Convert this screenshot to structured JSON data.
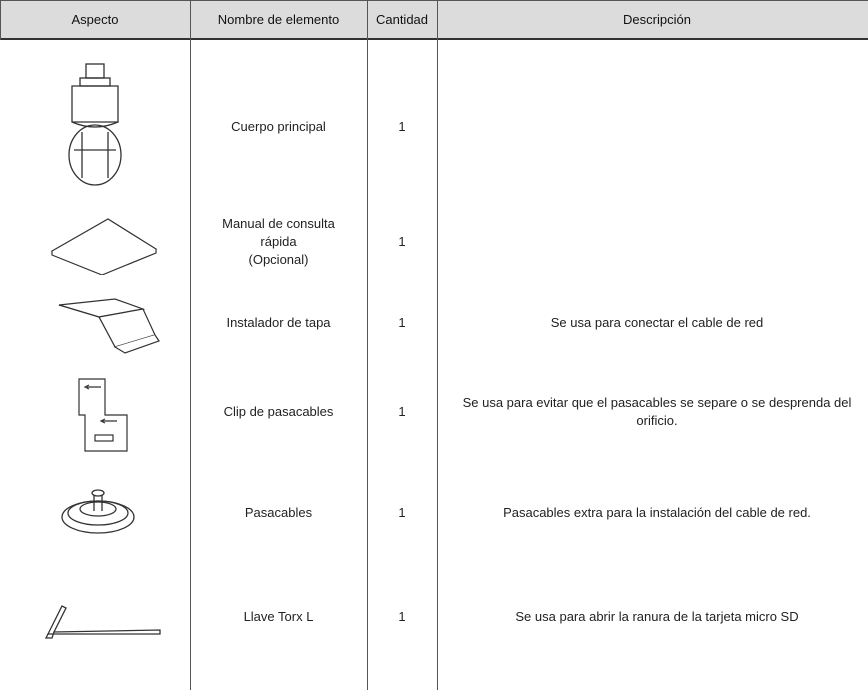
{
  "header": {
    "columns": [
      "Aspecto",
      "Nombre de elemento",
      "Cantidad",
      "Descripción"
    ]
  },
  "table": {
    "rows": [
      {
        "name": "Cuerpo principal",
        "quantity": 1,
        "description": null
      },
      {
        "name": "Manual de consulta\nrápida\n(Opcional)",
        "quantity": 1,
        "description": null
      },
      {
        "name": "Instalador de tapa",
        "quantity": 1,
        "description": "Se usa para conectar el cable de red"
      },
      {
        "name": "Clip de pasacables",
        "quantity": 1,
        "description": "Se usa para evitar que el pasacables se separe o se desprenda del orificio."
      },
      {
        "name": "Pasacables",
        "quantity": 1,
        "description": "Pasacables extra para la instalación del cable de red."
      },
      {
        "name": "Llave Torx L",
        "quantity": 1,
        "description": "Se usa para abrir la ranura de la tarjeta micro SD"
      }
    ]
  }
}
